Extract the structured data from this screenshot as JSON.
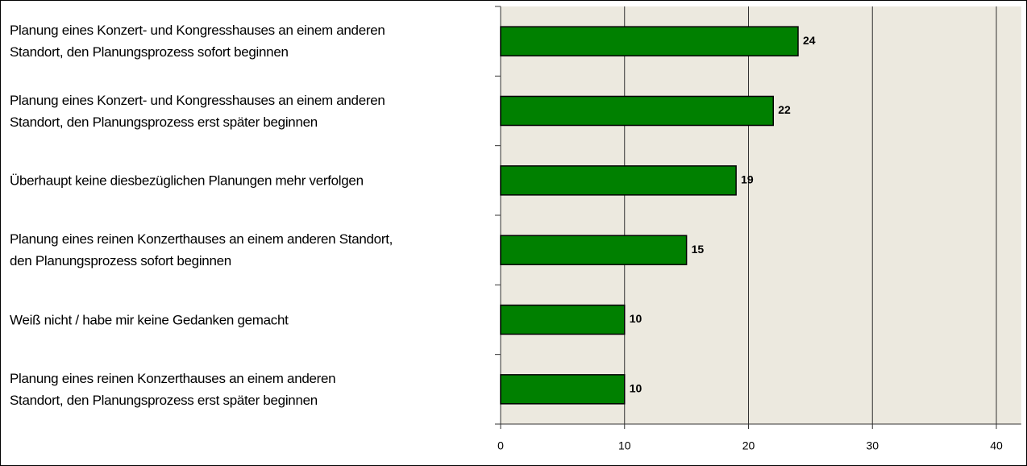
{
  "chart_data": {
    "type": "bar",
    "orientation": "horizontal",
    "categories": [
      "Planung eines Konzert- und Kongresshauses an einem anderen\nStandort, den Planungsprozess sofort beginnen",
      "Planung eines Konzert- und Kongresshauses an einem anderen\nStandort, den Planungsprozess erst später beginnen",
      "Überhaupt keine diesbezüglichen Planungen mehr verfolgen",
      "Planung eines reinen Konzerthauses an einem anderen Standort,\nden Planungsprozess sofort beginnen",
      "Weiß nicht / habe mir keine Gedanken gemacht",
      "Planung eines reinen Konzerthauses an einem anderen\nStandort, den Planungsprozess erst später beginnen"
    ],
    "values": [
      24,
      22,
      19,
      15,
      10,
      10
    ],
    "color": "#008000",
    "xlim": [
      0,
      42
    ],
    "xticks": [
      0,
      10,
      20,
      30,
      40
    ],
    "grid": true
  }
}
